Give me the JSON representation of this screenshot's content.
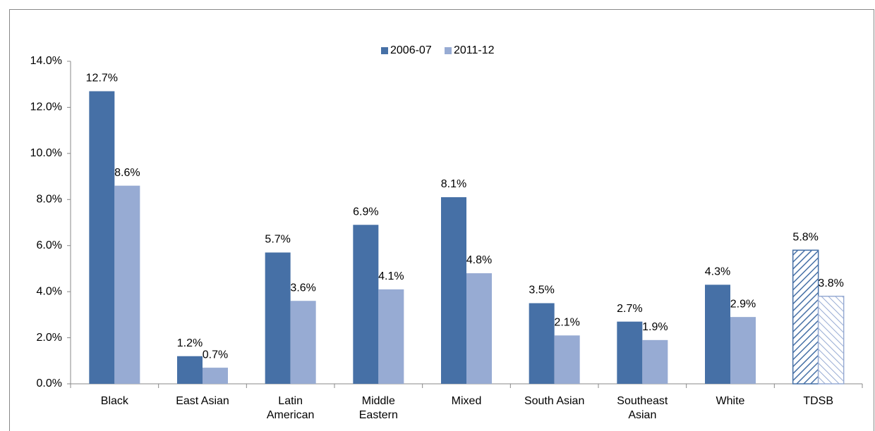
{
  "chart_data": {
    "type": "bar",
    "categories": [
      "Black",
      "East Asian",
      "Latin American",
      "Middle Eastern",
      "Mixed",
      "South Asian",
      "Southeast Asian",
      "White",
      "TDSB"
    ],
    "hatched": [
      false,
      false,
      false,
      false,
      false,
      false,
      false,
      false,
      true
    ],
    "series": [
      {
        "name": "2006-07",
        "color": "#4670a6",
        "values": [
          12.7,
          1.2,
          5.7,
          6.9,
          8.1,
          3.5,
          2.7,
          4.3,
          5.8
        ],
        "value_labels": [
          "12.7%",
          "1.2%",
          "5.7%",
          "6.9%",
          "8.1%",
          "3.5%",
          "2.7%",
          "4.3%",
          "5.8%"
        ]
      },
      {
        "name": "2011-12",
        "color": "#97abd3",
        "values": [
          8.6,
          0.7,
          3.6,
          4.1,
          4.8,
          2.1,
          1.9,
          2.9,
          3.8
        ],
        "value_labels": [
          "8.6%",
          "0.7%",
          "3.6%",
          "4.1%",
          "4.8%",
          "2.1%",
          "1.9%",
          "2.9%",
          "3.8%"
        ]
      }
    ],
    "ylim": [
      0,
      14
    ],
    "yticks": [
      {
        "value": 0,
        "label": "0.0%"
      },
      {
        "value": 2,
        "label": "2.0%"
      },
      {
        "value": 4,
        "label": "4.0%"
      },
      {
        "value": 6,
        "label": "6.0%"
      },
      {
        "value": 8,
        "label": "8.0%"
      },
      {
        "value": 10,
        "label": "10.0%"
      },
      {
        "value": 12,
        "label": "12.0%"
      },
      {
        "value": 14,
        "label": "14.0%"
      }
    ],
    "legend": "top"
  }
}
